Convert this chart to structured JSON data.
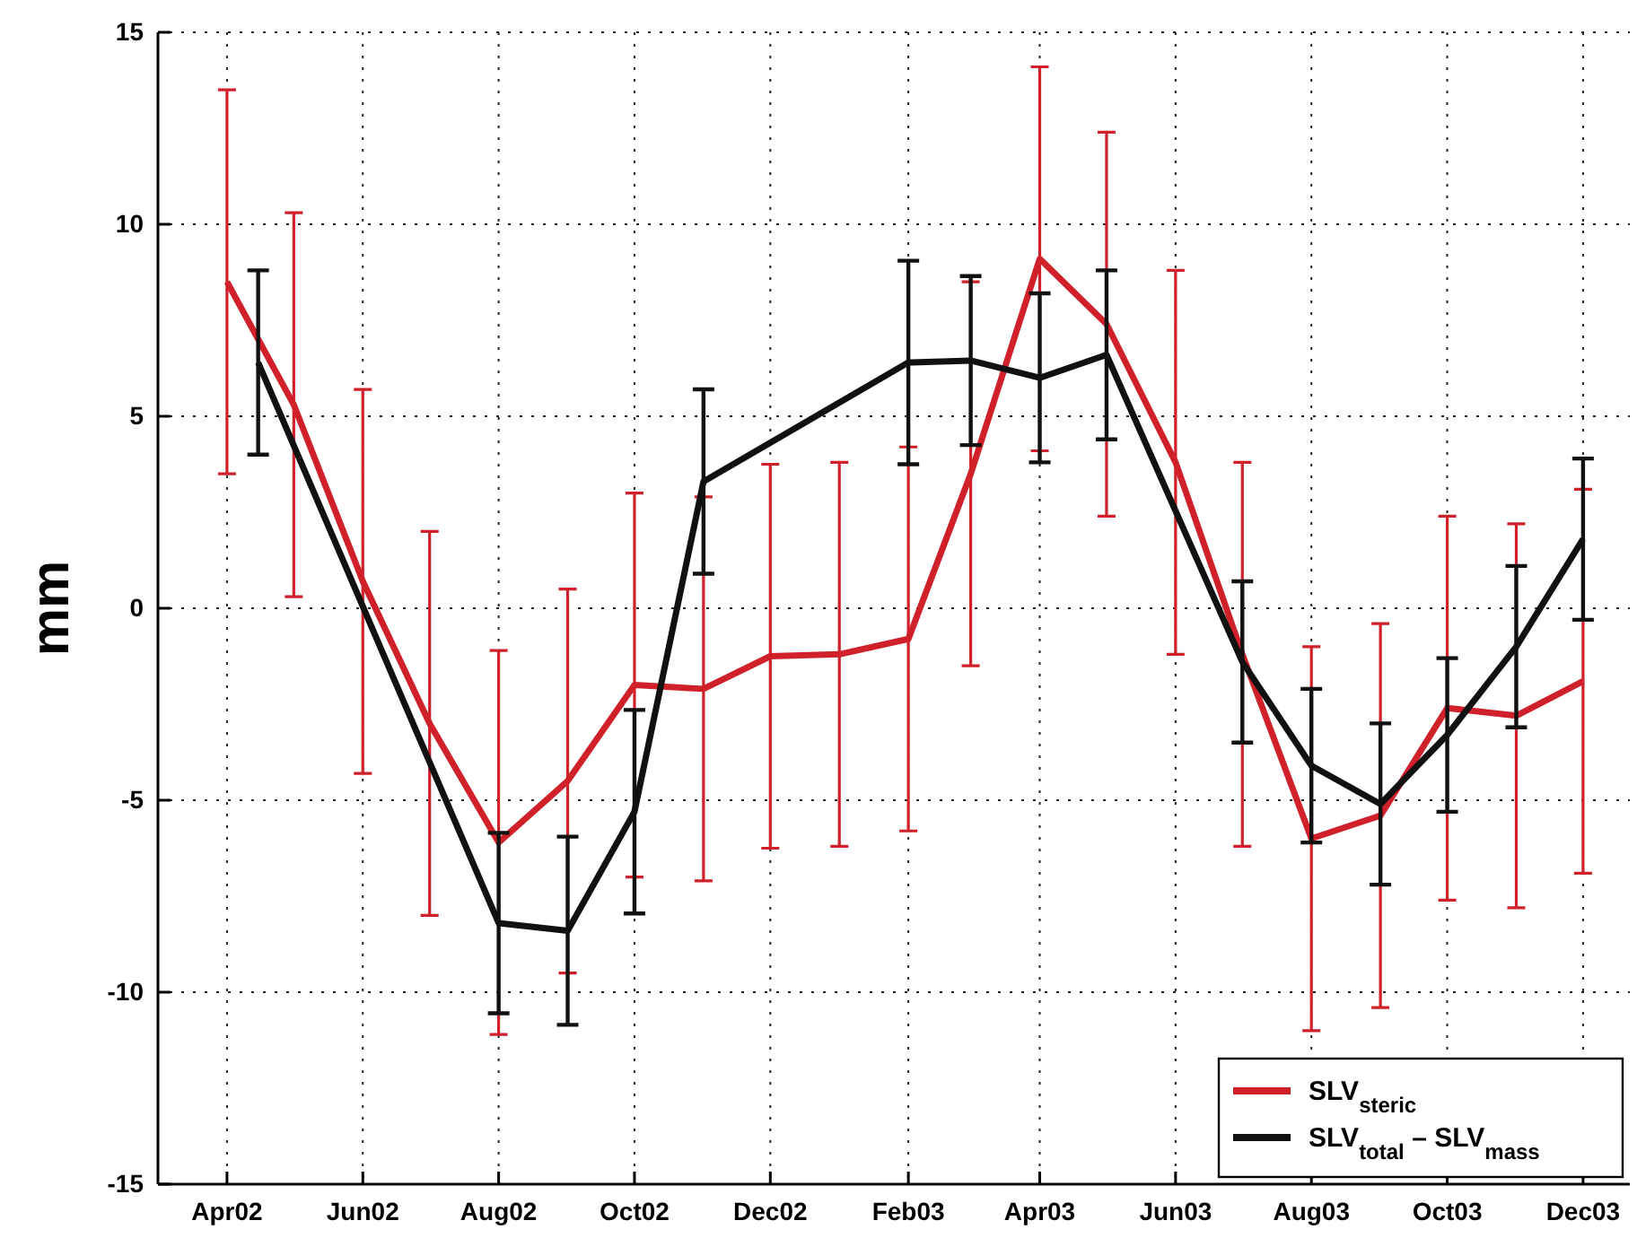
{
  "chart_data": {
    "type": "line",
    "ylabel": "mm",
    "xlim": [
      "2002-03-01",
      "2003-12-22"
    ],
    "xticks": [
      {
        "value": "2002-04",
        "label": "Apr02"
      },
      {
        "value": "2002-06",
        "label": "Jun02"
      },
      {
        "value": "2002-08",
        "label": "Aug02"
      },
      {
        "value": "2002-10",
        "label": "Oct02"
      },
      {
        "value": "2002-12",
        "label": "Dec02"
      },
      {
        "value": "2003-02",
        "label": "Feb03"
      },
      {
        "value": "2003-04",
        "label": "Apr03"
      },
      {
        "value": "2003-06",
        "label": "Jun03"
      },
      {
        "value": "2003-08",
        "label": "Aug03"
      },
      {
        "value": "2003-10",
        "label": "Oct03"
      },
      {
        "value": "2003-12",
        "label": "Dec03"
      }
    ],
    "ylim": [
      -15,
      15
    ],
    "yticks": [
      -15,
      -10,
      -5,
      0,
      5,
      10,
      15
    ],
    "grid": true,
    "legend": "bottom right",
    "marker": "none",
    "line_style": "solid",
    "series": [
      {
        "name": "SLV$_{steric}$",
        "color": "#d0202a",
        "x": [
          "2002-04",
          "2002-05",
          "2002-06",
          "2002-07",
          "2002-08",
          "2002-09",
          "2002-10",
          "2002-11",
          "2002-12",
          "2003-01",
          "2003-02",
          "2003-03",
          "2003-04",
          "2003-05",
          "2003-06",
          "2003-07",
          "2003-08",
          "2003-09",
          "2003-10",
          "2003-11",
          "2003-12"
        ],
        "values": [
          8.5,
          5.3,
          0.7,
          -3.0,
          -6.1,
          -4.5,
          -2.0,
          -2.1,
          -1.25,
          -1.2,
          -0.8,
          3.5,
          9.1,
          7.4,
          3.8,
          -1.2,
          -6.0,
          -5.4,
          -2.6,
          -2.8,
          -1.9
        ],
        "errors": [
          5,
          5,
          5,
          5,
          5,
          5,
          5,
          5,
          5,
          5,
          5,
          5,
          5,
          5,
          5,
          5,
          5,
          5,
          5,
          5,
          5
        ]
      },
      {
        "name": "SLV$_{total}$ – SLV$_{mass}$",
        "color": "#111111",
        "x": [
          "2002-04-15",
          "2002-08",
          "2002-09",
          "2002-10",
          "2002-11",
          "2003-02",
          "2003-03",
          "2003-04",
          "2003-05",
          "2003-07",
          "2003-08",
          "2003-09",
          "2003-10",
          "2003-11",
          "2003-12"
        ],
        "values": [
          6.4,
          -8.2,
          -8.4,
          -5.3,
          3.3,
          6.4,
          6.45,
          6.0,
          6.6,
          -1.4,
          -4.1,
          -5.1,
          -3.3,
          -1.0,
          1.8
        ],
        "errors": [
          2.4,
          2.35,
          2.45,
          2.65,
          2.4,
          2.65,
          2.2,
          2.2,
          2.2,
          2.1,
          2.0,
          2.1,
          2.0,
          2.1,
          2.1
        ]
      }
    ]
  }
}
